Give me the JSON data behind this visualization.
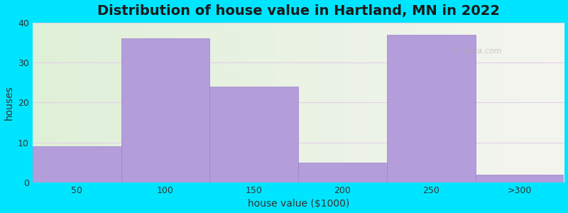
{
  "title": "Distribution of house value in Hartland, MN in 2022",
  "xlabel": "house value ($1000)",
  "ylabel": "houses",
  "categories": [
    "50",
    "100",
    "150",
    "200",
    "250",
    ">300"
  ],
  "values": [
    9,
    36,
    24,
    5,
    37,
    2
  ],
  "bar_color": "#b39ddb",
  "bar_edge_color": "#a080cc",
  "background_color": "#00e5ff",
  "plot_bg_left": "#dff0d8",
  "plot_bg_right": "#f5f5f0",
  "ylim": [
    0,
    40
  ],
  "yticks": [
    0,
    10,
    20,
    30,
    40
  ],
  "title_fontsize": 14,
  "label_fontsize": 10,
  "tick_fontsize": 9,
  "grid_color": "#e0d0e8",
  "watermark": "City-Data.com"
}
